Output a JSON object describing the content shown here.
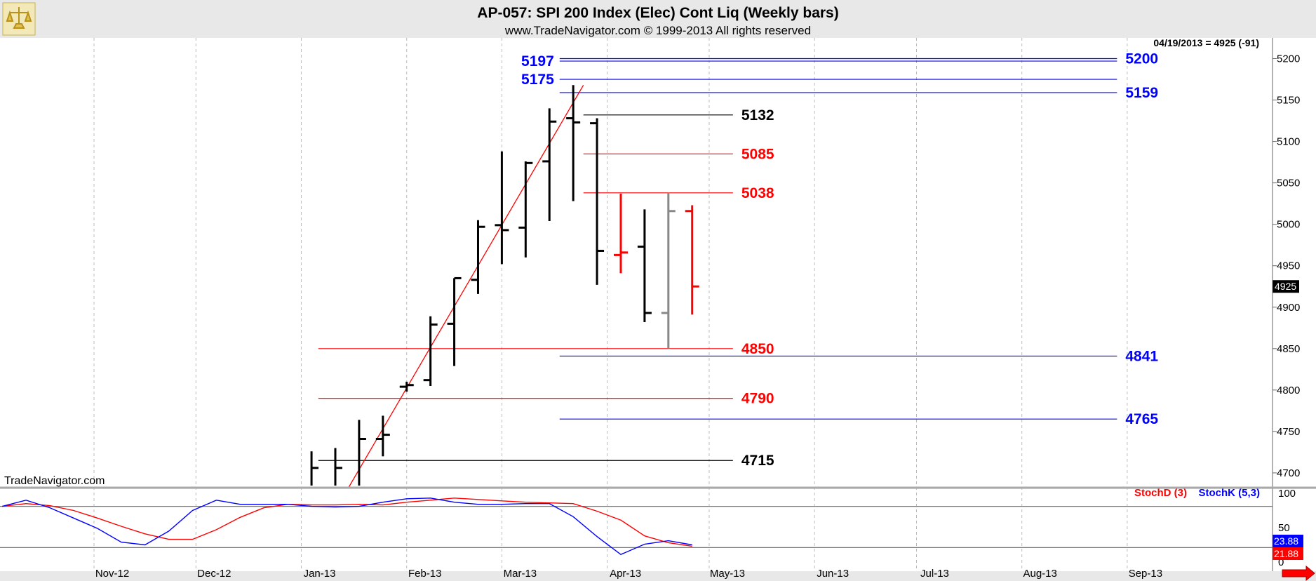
{
  "header": {
    "title": "AP-057:  SPI 200 Index (Elec) Cont Liq  (Weekly bars)",
    "subtitle": "www.TradeNavigator.com © 1999-2013 All rights reserved",
    "last_quote": "04/19/2013 = 4925 (-91)",
    "watermark": "TradeNavigator.com"
  },
  "colors": {
    "blue": "#0000ff",
    "red": "#ff0000",
    "black": "#000000",
    "gray": "#888888",
    "background": "#ffffff",
    "frame": "#e8e8e8"
  },
  "chart_data": [
    {
      "type": "ohlc",
      "title": "AP-057:  SPI 200 Index (Elec) Cont Liq  (Weekly bars)",
      "x_tick_labels": [
        "Nov-12",
        "Dec-12",
        "Jan-13",
        "Feb-13",
        "Mar-13",
        "Apr-13",
        "May-13",
        "Jun-13",
        "Jul-13",
        "Aug-13",
        "Sep-13"
      ],
      "y_tick_labels": [
        "5200",
        "5150",
        "5100",
        "5050",
        "5000",
        "4950",
        "4900",
        "4850",
        "4800",
        "4750",
        "4700"
      ],
      "ylim": [
        4683,
        5225
      ],
      "last_price_marker": "4925",
      "bars": [
        {
          "week": "2013-01-04",
          "open": 4672,
          "high": 4726,
          "low": 4668,
          "close": 4706,
          "color": "#000000"
        },
        {
          "week": "2013-01-11",
          "open": 4678,
          "high": 4730,
          "low": 4670,
          "close": 4706,
          "color": "#000000"
        },
        {
          "week": "2013-01-18",
          "open": 4682,
          "high": 4764,
          "low": 4680,
          "close": 4741,
          "color": "#000000"
        },
        {
          "week": "2013-01-25",
          "open": 4741,
          "high": 4769,
          "low": 4720,
          "close": 4746,
          "color": "#000000"
        },
        {
          "week": "2013-02-01",
          "open": 4804,
          "high": 4810,
          "low": 4798,
          "close": 4806,
          "color": "#000000"
        },
        {
          "week": "2013-02-08",
          "open": 4812,
          "high": 4889,
          "low": 4805,
          "close": 4879,
          "color": "#000000"
        },
        {
          "week": "2013-02-15",
          "open": 4880,
          "high": 4935,
          "low": 4829,
          "close": 4935,
          "color": "#000000"
        },
        {
          "week": "2013-02-22",
          "open": 4933,
          "high": 5005,
          "low": 4916,
          "close": 4997,
          "color": "#000000"
        },
        {
          "week": "2013-03-01",
          "open": 4999,
          "high": 5088,
          "low": 4952,
          "close": 4993,
          "color": "#000000"
        },
        {
          "week": "2013-03-08",
          "open": 4996,
          "high": 5076,
          "low": 4960,
          "close": 5074,
          "color": "#000000"
        },
        {
          "week": "2013-03-15",
          "open": 5076,
          "high": 5140,
          "low": 5004,
          "close": 5124,
          "color": "#000000"
        },
        {
          "week": "2013-03-22",
          "open": 5128,
          "high": 5168,
          "low": 5028,
          "close": 5123,
          "color": "#000000"
        },
        {
          "week": "2013-03-29",
          "open": 5122,
          "high": 5128,
          "low": 4927,
          "close": 4968,
          "color": "#000000"
        },
        {
          "week": "2013-04-05",
          "open": 4963,
          "high": 5037,
          "low": 4941,
          "close": 4966,
          "color": "#ff0000"
        },
        {
          "week": "2013-04-12",
          "open": 4973,
          "high": 5018,
          "low": 4882,
          "close": 4893,
          "color": "#000000"
        },
        {
          "week": "2013-04-19",
          "open": 4893,
          "high": 5038,
          "low": 4850,
          "close": 5016,
          "color": "#888888"
        },
        {
          "week": "2013-04-26",
          "open": 5016,
          "high": 5023,
          "low": 4891,
          "close": 4925,
          "color": "#ff0000"
        }
      ],
      "trendline": {
        "from": {
          "week": "2013-01-15",
          "price": 4683
        },
        "to": {
          "week": "2013-03-25",
          "price": 5168
        },
        "color": "#ff0000"
      },
      "levels": [
        {
          "label": "5197",
          "value": 5197,
          "color": "#0000ff",
          "from_week": "2013-03-18",
          "to_week": "2013-08-29",
          "label_side": "left"
        },
        {
          "label": "5200",
          "value": 5200,
          "color": "#0000ff",
          "from_week": "2013-03-18",
          "to_week": "2013-08-29",
          "label_side": "right"
        },
        {
          "label": "5175",
          "value": 5175,
          "color": "#0000ff",
          "from_week": "2013-03-18",
          "to_week": "2013-08-29",
          "label_side": "left"
        },
        {
          "label": "5159",
          "value": 5159,
          "color": "#0000ff",
          "from_week": "2013-03-18",
          "to_week": "2013-08-29",
          "label_side": "right"
        },
        {
          "label": "5132",
          "value": 5132,
          "color": "#000000",
          "from_week": "2013-03-25",
          "to_week": "2013-05-08",
          "label_side": "right"
        },
        {
          "label": "5085",
          "value": 5085,
          "color": "#ff0000",
          "from_week": "2013-03-25",
          "to_week": "2013-05-08",
          "label_side": "right"
        },
        {
          "label": "5038",
          "value": 5038,
          "color": "#ff0000",
          "from_week": "2013-03-25",
          "to_week": "2013-05-08",
          "label_side": "right"
        },
        {
          "label": "4850",
          "value": 4850,
          "color": "#ff0000",
          "from_week": "2013-01-06",
          "to_week": "2013-05-08",
          "label_side": "right"
        },
        {
          "label": "4841",
          "value": 4841,
          "color": "#0000ff",
          "from_week": "2013-03-18",
          "to_week": "2013-08-29",
          "label_side": "right"
        },
        {
          "label": "4790",
          "value": 4790,
          "color": "#ff0000",
          "from_week": "2013-01-06",
          "to_week": "2013-05-08",
          "label_side": "right"
        },
        {
          "label": "4765",
          "value": 4765,
          "color": "#0000ff",
          "from_week": "2013-03-18",
          "to_week": "2013-08-29",
          "label_side": "right"
        },
        {
          "label": "4715",
          "value": 4715,
          "color": "#000000",
          "from_week": "2013-01-06",
          "to_week": "2013-05-08",
          "label_side": "right"
        }
      ]
    },
    {
      "type": "line",
      "x_tick_labels": [
        "Nov-12",
        "Dec-12",
        "Jan-13",
        "Feb-13",
        "Mar-13",
        "Apr-13",
        "May-13",
        "Jun-13",
        "Jul-13",
        "Aug-13",
        "Sep-13"
      ],
      "y_tick_labels": [
        "100",
        "50",
        "0"
      ],
      "ylim": [
        0,
        100
      ],
      "reference_lines": [
        80,
        20
      ],
      "legend": [
        "StochD (3)",
        "StochK (5,3)"
      ],
      "last_value_markers": [
        {
          "label": "21.88",
          "color": "#ff0000"
        },
        {
          "label": "23.88",
          "color": "#0000ff"
        }
      ],
      "series": [
        {
          "name": "StochD (3)",
          "color": "#ff0000",
          "points": [
            [
              "2012-10-05",
              80
            ],
            [
              "2012-10-12",
              84
            ],
            [
              "2012-10-19",
              81
            ],
            [
              "2012-10-26",
              74
            ],
            [
              "2012-11-02",
              63
            ],
            [
              "2012-11-09",
              51
            ],
            [
              "2012-11-16",
              40
            ],
            [
              "2012-11-23",
              32
            ],
            [
              "2012-11-30",
              32
            ],
            [
              "2012-12-07",
              46
            ],
            [
              "2012-12-14",
              64
            ],
            [
              "2012-12-21",
              78
            ],
            [
              "2012-12-28",
              83
            ],
            [
              "2013-01-04",
              82
            ],
            [
              "2013-01-11",
              82
            ],
            [
              "2013-01-18",
              83
            ],
            [
              "2013-01-25",
              82
            ],
            [
              "2013-02-01",
              86
            ],
            [
              "2013-02-08",
              89
            ],
            [
              "2013-02-15",
              92
            ],
            [
              "2013-02-22",
              90
            ],
            [
              "2013-03-01",
              88
            ],
            [
              "2013-03-08",
              86
            ],
            [
              "2013-03-15",
              85
            ],
            [
              "2013-03-22",
              84
            ],
            [
              "2013-03-29",
              73
            ],
            [
              "2013-04-05",
              60
            ],
            [
              "2013-04-12",
              37
            ],
            [
              "2013-04-19",
              27
            ],
            [
              "2013-04-26",
              22
            ]
          ]
        },
        {
          "name": "StochK (5,3)",
          "color": "#0000ff",
          "points": [
            [
              "2012-10-05",
              80
            ],
            [
              "2012-10-12",
              89
            ],
            [
              "2012-10-19",
              78
            ],
            [
              "2012-10-26",
              63
            ],
            [
              "2012-11-02",
              48
            ],
            [
              "2012-11-09",
              28
            ],
            [
              "2012-11-16",
              24
            ],
            [
              "2012-11-23",
              44
            ],
            [
              "2012-11-30",
              74
            ],
            [
              "2012-12-07",
              89
            ],
            [
              "2012-12-14",
              83
            ],
            [
              "2012-12-21",
              83
            ],
            [
              "2012-12-28",
              83
            ],
            [
              "2013-01-04",
              80
            ],
            [
              "2013-01-11",
              79
            ],
            [
              "2013-01-18",
              80
            ],
            [
              "2013-01-25",
              86
            ],
            [
              "2013-02-01",
              91
            ],
            [
              "2013-02-08",
              92
            ],
            [
              "2013-02-15",
              86
            ],
            [
              "2013-02-22",
              83
            ],
            [
              "2013-03-01",
              83
            ],
            [
              "2013-03-08",
              84
            ],
            [
              "2013-03-15",
              84
            ],
            [
              "2013-03-22",
              65
            ],
            [
              "2013-03-29",
              36
            ],
            [
              "2013-04-05",
              10
            ],
            [
              "2013-04-12",
              25
            ],
            [
              "2013-04-19",
              30
            ],
            [
              "2013-04-26",
              24
            ]
          ]
        }
      ]
    }
  ]
}
